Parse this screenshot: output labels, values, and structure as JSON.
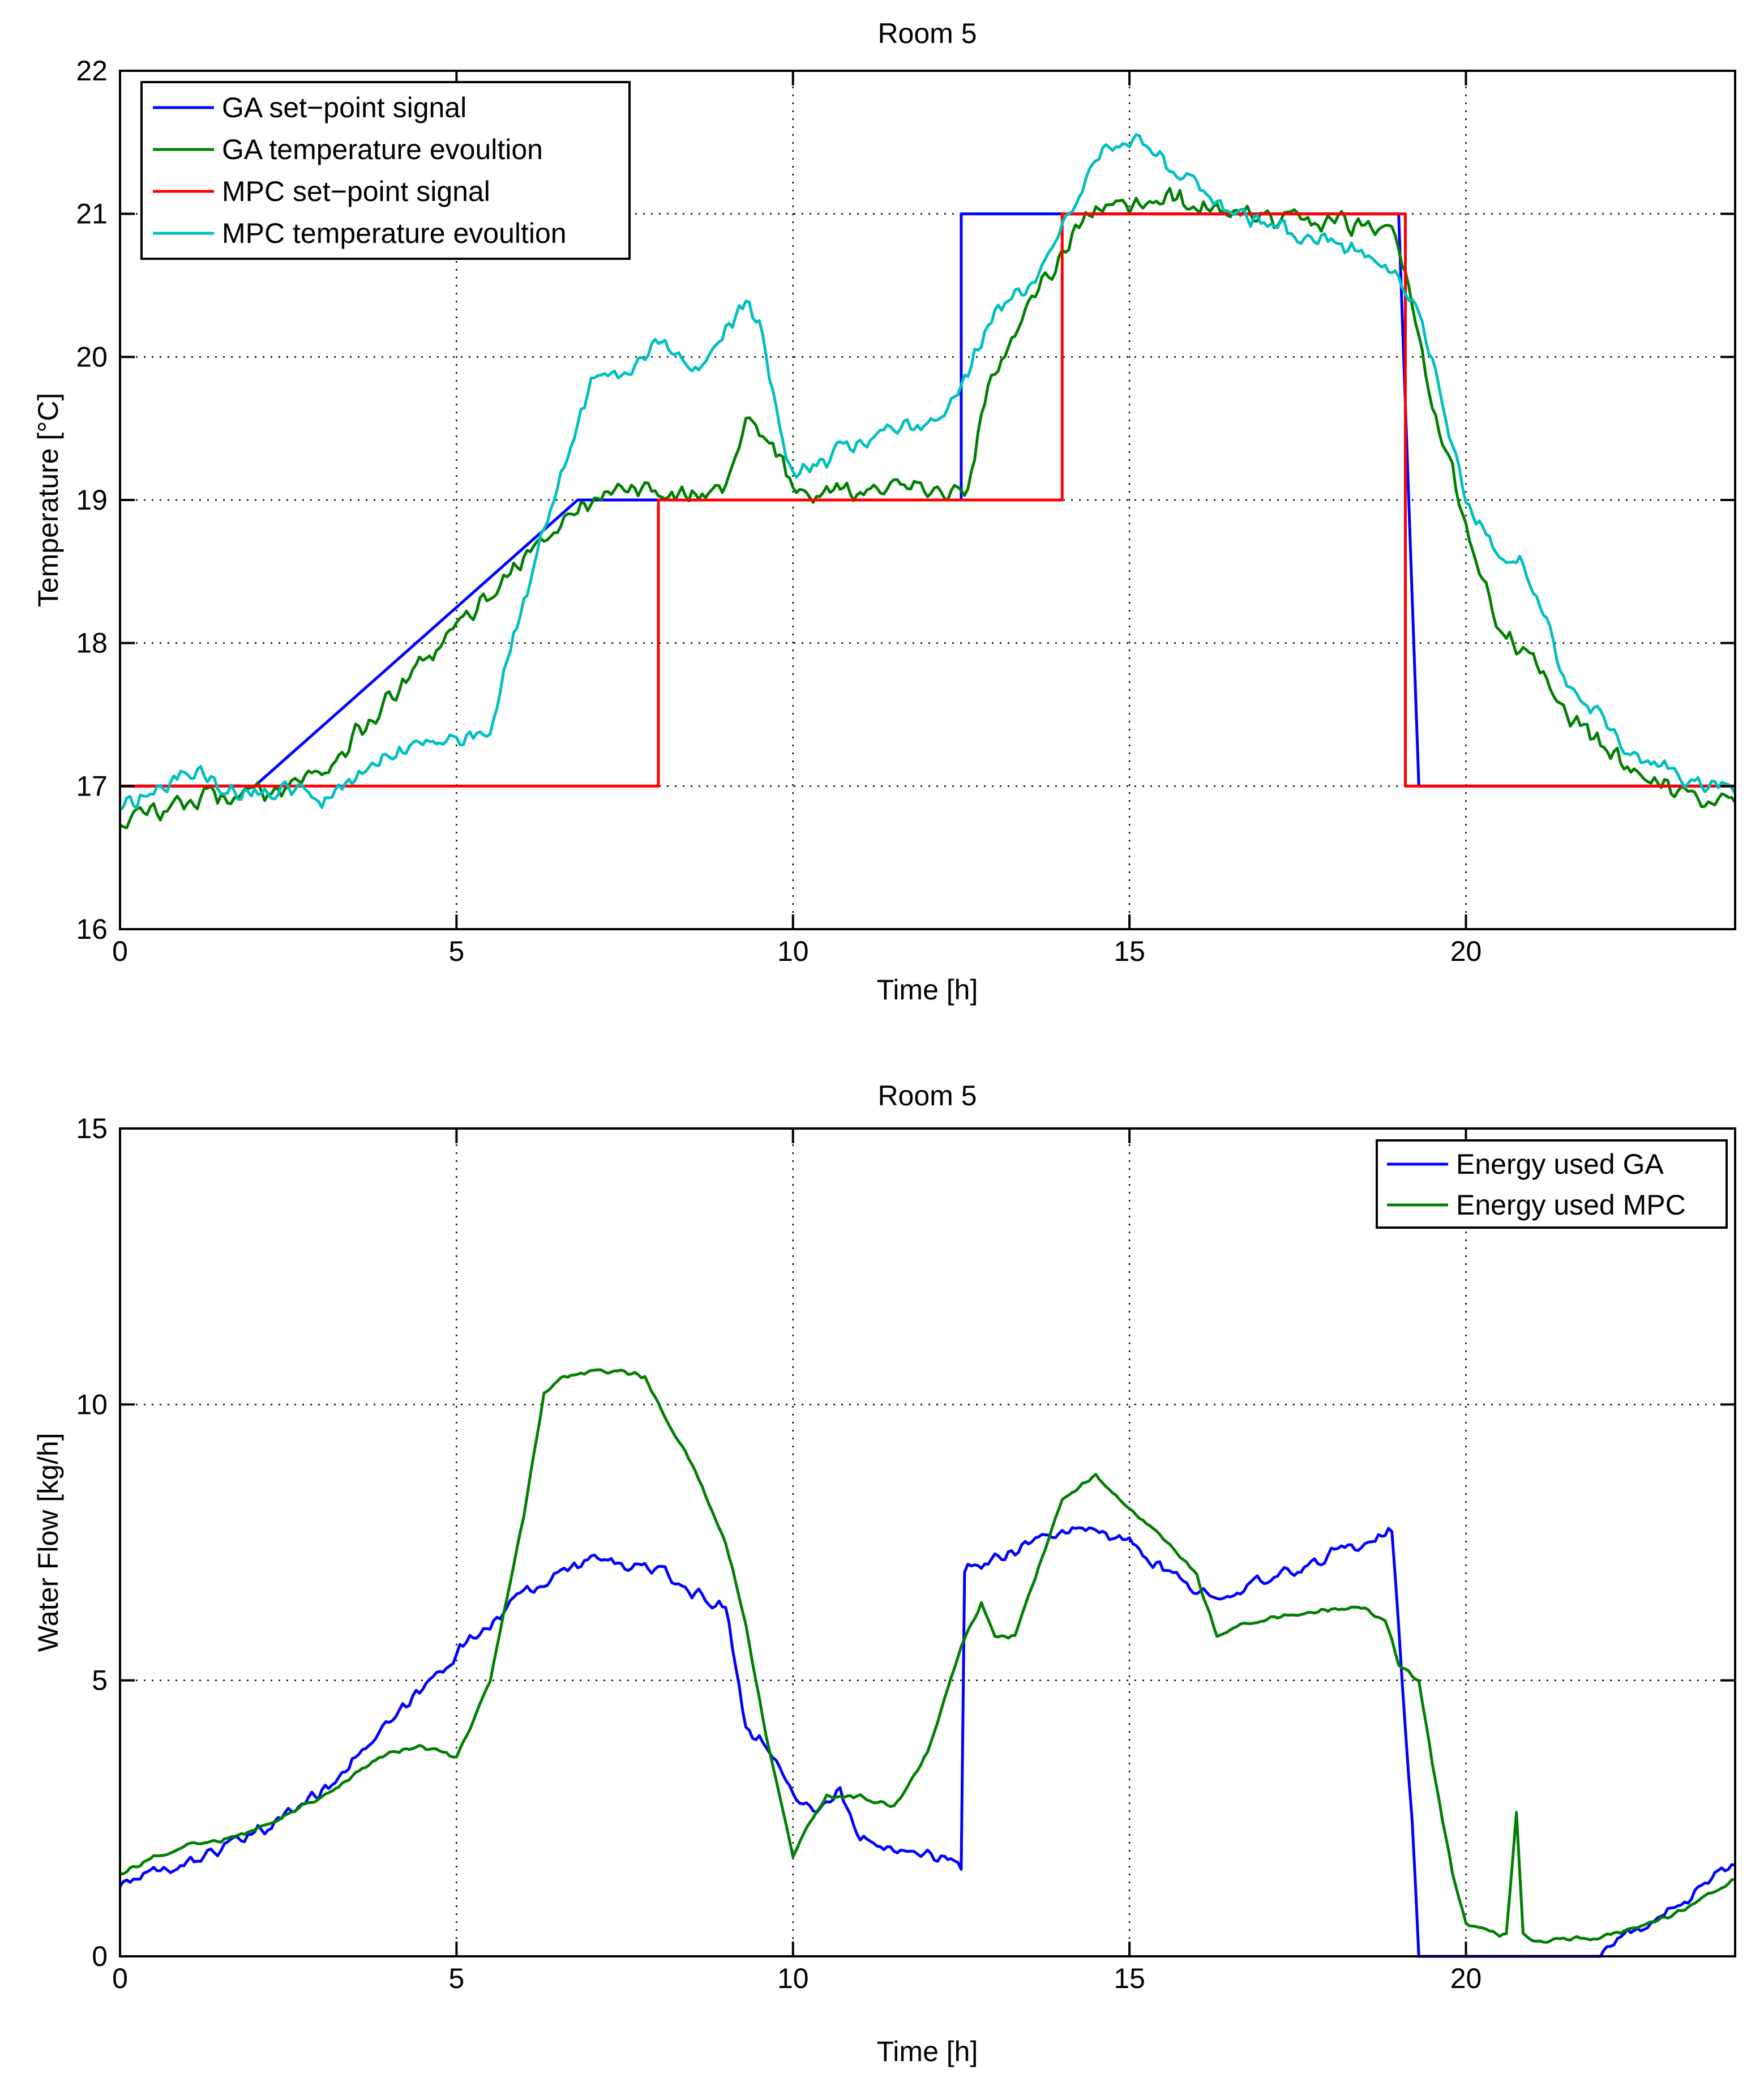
{
  "chart_data": [
    {
      "type": "line",
      "title": "Room 5",
      "xlabel": "Time [h]",
      "ylabel": "Temperature [°C]",
      "xlim": [
        0,
        24
      ],
      "ylim": [
        16,
        22
      ],
      "xticks": [
        0,
        5,
        10,
        15,
        20
      ],
      "yticks": [
        16,
        17,
        18,
        19,
        20,
        21,
        22
      ],
      "xtick_labels": [
        "0",
        "5",
        "10",
        "15",
        "20"
      ],
      "ytick_labels": [
        "16",
        "17",
        "18",
        "19",
        "20",
        "21",
        "22"
      ],
      "grid": true,
      "legend_position": "top-left",
      "series": [
        {
          "name": "GA set−point signal",
          "color": "#0000ff",
          "style": "step",
          "x": [
            0,
            2,
            6.8,
            8,
            12.5,
            12.5,
            14,
            19,
            19.3,
            24
          ],
          "y": [
            17,
            17,
            19,
            19,
            19,
            21,
            21,
            21,
            17,
            17
          ]
        },
        {
          "name": "GA temperature evoultion",
          "color": "#007f00",
          "style": "noisy",
          "noise": 0.09,
          "x": [
            0,
            1,
            2,
            3,
            4,
            5,
            6,
            6.5,
            7,
            7.5,
            8,
            8.5,
            9,
            9.3,
            9.6,
            9.8,
            10.0,
            10.3,
            10.7,
            11,
            11.5,
            12,
            12.6,
            12.8,
            13,
            13.5,
            14,
            14.2,
            14.5,
            15,
            15.5,
            16,
            16.5,
            17,
            17.5,
            18,
            18.5,
            18.9,
            19,
            19.3,
            19.5,
            19.8,
            20,
            20.5,
            21,
            21.5,
            22,
            22.5,
            23,
            23.5,
            24
          ],
          "y": [
            16.75,
            16.9,
            16.95,
            17.1,
            17.6,
            18.1,
            18.6,
            18.8,
            19.0,
            19.1,
            19.05,
            19.05,
            19.1,
            19.6,
            19.4,
            19.3,
            19.1,
            19.05,
            19.1,
            19.05,
            19.1,
            19.05,
            19.05,
            19.6,
            19.9,
            20.4,
            20.7,
            20.9,
            21.0,
            21.05,
            21.1,
            21.05,
            21.0,
            21.0,
            20.95,
            20.95,
            20.9,
            20.95,
            20.8,
            20.2,
            19.6,
            19.2,
            18.8,
            18.1,
            17.9,
            17.5,
            17.3,
            17.1,
            17.0,
            16.85,
            16.9
          ]
        },
        {
          "name": "MPC set−point signal",
          "color": "#ff0000",
          "style": "step",
          "x": [
            0,
            8,
            8,
            14,
            14,
            19.1,
            19.1,
            24
          ],
          "y": [
            17,
            17,
            19,
            19,
            21,
            21,
            17,
            17
          ]
        },
        {
          "name": "MPC temperature evoultion",
          "color": "#00bfbf",
          "style": "noisy",
          "noise": 0.08,
          "x": [
            0,
            0.5,
            1,
            1.5,
            2,
            2.5,
            3,
            3.5,
            4,
            4.5,
            5,
            5.5,
            6,
            6.5,
            7,
            7.5,
            8,
            8.5,
            9,
            9.3,
            9.5,
            10,
            10.5,
            11,
            11.5,
            12,
            12.5,
            13,
            13.5,
            14,
            14.5,
            15,
            15.5,
            16,
            16.5,
            17,
            17.5,
            18,
            18.5,
            18.8,
            19,
            19.3,
            19.5,
            20,
            20.5,
            20.8,
            21,
            21.5,
            22,
            22.5,
            23,
            23.5,
            24
          ],
          "y": [
            16.85,
            16.95,
            17.1,
            17.0,
            16.95,
            17.0,
            16.9,
            17.05,
            17.2,
            17.3,
            17.3,
            17.4,
            18.3,
            19.1,
            19.8,
            19.9,
            20.1,
            19.9,
            20.2,
            20.4,
            20.2,
            19.15,
            19.3,
            19.4,
            19.5,
            19.5,
            19.8,
            20.3,
            20.5,
            20.9,
            21.4,
            21.5,
            21.4,
            21.2,
            21.0,
            20.95,
            20.85,
            20.8,
            20.7,
            20.6,
            20.55,
            20.3,
            20.0,
            19.0,
            18.6,
            18.6,
            18.4,
            17.7,
            17.5,
            17.2,
            17.1,
            17.0,
            17.0
          ]
        }
      ]
    },
    {
      "type": "line",
      "title": "Room 5",
      "xlabel": "Time [h]",
      "ylabel": "Water Flow [kg/h]",
      "xlim": [
        0,
        24
      ],
      "ylim": [
        0,
        15
      ],
      "xticks": [
        0,
        5,
        10,
        15,
        20
      ],
      "yticks": [
        0,
        5,
        10,
        15
      ],
      "xtick_labels": [
        "0",
        "5",
        "10",
        "15",
        "20"
      ],
      "ytick_labels": [
        "0",
        "5",
        "10",
        "15"
      ],
      "grid": true,
      "legend_position": "top-right",
      "series": [
        {
          "name": "Energy used GA",
          "color": "#0000ff",
          "style": "noisy",
          "noise": 0.14,
          "x": [
            0,
            1,
            2,
            3,
            4,
            5,
            6,
            7,
            7.5,
            8,
            8.5,
            9,
            9.3,
            9.6,
            10,
            10.3,
            10.7,
            11,
            11.5,
            12,
            12.5,
            12.55,
            13,
            13.5,
            14,
            14.5,
            15,
            15.5,
            16,
            16.5,
            17,
            17.5,
            18,
            18.5,
            18.9,
            19.2,
            19.3,
            20,
            21,
            22,
            22.5,
            23,
            23.5,
            24
          ],
          "y": [
            1.3,
            1.7,
            2.2,
            3.0,
            4.2,
            5.5,
            6.6,
            7.2,
            7.1,
            7.0,
            6.6,
            6.3,
            4.2,
            3.8,
            3.0,
            2.6,
            3.0,
            2.1,
            2.0,
            1.9,
            1.6,
            7.0,
            7.2,
            7.5,
            7.7,
            7.7,
            7.5,
            7.0,
            6.6,
            6.6,
            6.8,
            7.0,
            7.3,
            7.5,
            7.7,
            2.5,
            0.0,
            0.0,
            0.0,
            0.0,
            0.5,
            0.8,
            1.2,
            1.7
          ]
        },
        {
          "name": "Energy used MPC",
          "color": "#007f00",
          "style": "noisy",
          "noise": 0.05,
          "x": [
            0,
            0.5,
            1,
            1.5,
            2,
            2.5,
            3,
            3.5,
            4,
            4.5,
            5,
            5.5,
            6,
            6.3,
            6.6,
            7,
            7.5,
            7.8,
            8,
            8.5,
            9,
            9.3,
            9.6,
            10,
            10.2,
            10.5,
            11,
            11.5,
            12,
            12.5,
            12.8,
            13.0,
            13.3,
            13.5,
            14,
            14.5,
            15,
            15.5,
            16,
            16.3,
            16.6,
            17,
            17.5,
            18,
            18.5,
            18.8,
            19,
            19.3,
            19.5,
            19.8,
            20,
            20.5,
            20.6,
            20.75,
            20.85,
            21,
            21.5,
            22,
            23,
            24
          ],
          "y": [
            1.5,
            1.8,
            2.0,
            2.1,
            2.3,
            2.6,
            2.9,
            3.3,
            3.7,
            3.8,
            3.6,
            5.0,
            8.0,
            10.2,
            10.5,
            10.6,
            10.6,
            10.5,
            10.0,
            8.9,
            7.5,
            6.0,
            4.0,
            1.8,
            2.3,
            2.9,
            2.9,
            2.7,
            3.7,
            5.6,
            6.4,
            5.8,
            5.8,
            6.5,
            8.3,
            8.7,
            8.1,
            7.6,
            6.9,
            5.8,
            6.0,
            6.1,
            6.2,
            6.3,
            6.3,
            6.1,
            5.3,
            5.0,
            3.5,
            1.5,
            0.6,
            0.4,
            0.4,
            2.6,
            0.4,
            0.3,
            0.3,
            0.35,
            0.7,
            1.4
          ]
        }
      ]
    }
  ]
}
